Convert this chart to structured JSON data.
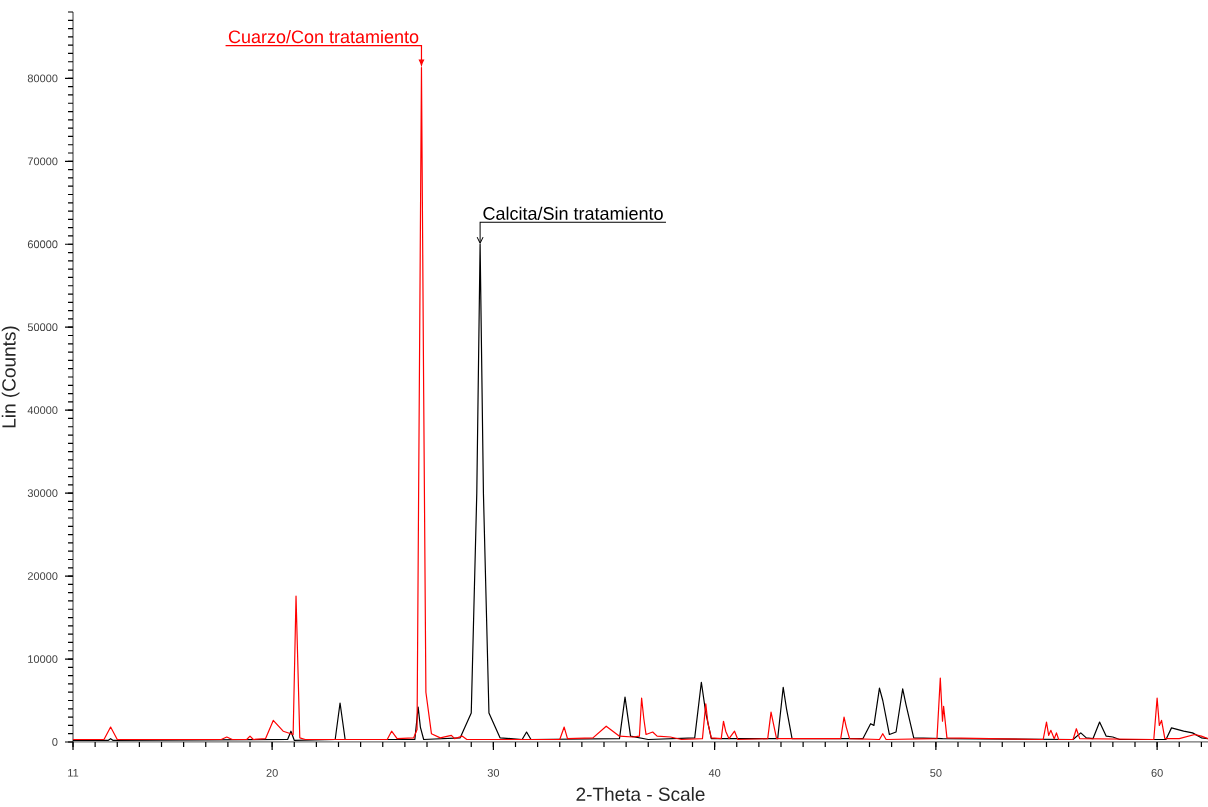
{
  "chart_data": {
    "type": "line",
    "xlabel": "2-Theta - Scale",
    "ylabel": "Lin (Counts)",
    "xlim": [
      11,
      62.3
    ],
    "ylim": [
      0,
      88000
    ],
    "xticks": [
      11,
      20,
      30,
      40,
      50,
      60
    ],
    "yticks": [
      0,
      10000,
      20000,
      30000,
      40000,
      50000,
      60000,
      70000,
      80000
    ],
    "series": [
      {
        "color": "#000000",
        "x": [
          11,
          12.6,
          12.7,
          12.8,
          20.7,
          20.85,
          21.0,
          22.85,
          23.07,
          23.3,
          26.45,
          26.6,
          26.7,
          26.85,
          28.5,
          29.0,
          29.25,
          29.4,
          29.55,
          29.8,
          30.3,
          31.3,
          31.5,
          31.7,
          35.7,
          35.95,
          36.2,
          37.0,
          39.1,
          39.4,
          39.6,
          39.85,
          42.85,
          43.1,
          43.25,
          43.5,
          46.7,
          47.05,
          47.2,
          47.45,
          47.6,
          47.9,
          48.2,
          48.5,
          48.65,
          49.0,
          50.3,
          56.2,
          56.55,
          56.8,
          57.1,
          57.4,
          57.7,
          58.0,
          58.3,
          60.4,
          60.65,
          61.2,
          61.6,
          62.0,
          62.3
        ],
        "values": [
          200,
          200,
          400,
          200,
          300,
          1300,
          200,
          300,
          4700,
          300,
          300,
          4200,
          1800,
          300,
          500,
          3500,
          30000,
          60000,
          30000,
          3500,
          500,
          300,
          1200,
          300,
          400,
          5400,
          700,
          300,
          500,
          7200,
          3500,
          400,
          400,
          6600,
          4000,
          400,
          400,
          2200,
          2000,
          6500,
          5000,
          900,
          1200,
          6400,
          4500,
          500,
          400,
          300,
          1100,
          500,
          400,
          2400,
          700,
          600,
          300,
          300,
          1700,
          1300,
          1100,
          500,
          400
        ]
      },
      {
        "color": "#ff0000",
        "x": [
          11,
          12.4,
          12.7,
          13.0,
          17.7,
          17.95,
          18.2,
          18.85,
          19.0,
          19.15,
          19.7,
          20.05,
          20.5,
          20.95,
          21.08,
          21.25,
          21.5,
          25.2,
          25.4,
          25.65,
          26.4,
          26.55,
          26.75,
          26.85,
          26.95,
          27.2,
          27.6,
          28.1,
          28.25,
          28.6,
          28.8,
          33.0,
          33.2,
          33.35,
          34.5,
          35.1,
          35.7,
          36.3,
          36.6,
          36.7,
          36.8,
          36.9,
          37.2,
          37.4,
          38.0,
          38.5,
          39.45,
          39.6,
          39.7,
          39.85,
          40.3,
          40.4,
          40.5,
          40.65,
          40.9,
          41.05,
          42.4,
          42.55,
          42.65,
          42.8,
          45.7,
          45.85,
          45.95,
          46.1,
          47.45,
          47.6,
          47.75,
          50.05,
          50.2,
          50.3,
          50.35,
          50.5,
          54.85,
          55.0,
          55.1,
          55.2,
          55.35,
          55.45,
          55.55,
          56.2,
          56.35,
          56.5,
          59.85,
          60.0,
          60.1,
          60.2,
          60.35,
          61.0,
          61.7,
          62.0,
          62.3
        ],
        "values": [
          300,
          300,
          1800,
          300,
          300,
          600,
          300,
          300,
          700,
          300,
          400,
          2600,
          1300,
          900,
          17600,
          500,
          300,
          300,
          1300,
          400,
          500,
          1500,
          81300,
          42000,
          6000,
          1000,
          500,
          800,
          400,
          700,
          300,
          300,
          1800,
          400,
          500,
          1900,
          700,
          600,
          700,
          5300,
          2800,
          900,
          1200,
          700,
          600,
          300,
          400,
          4600,
          2200,
          500,
          400,
          2500,
          1300,
          400,
          1300,
          300,
          400,
          3600,
          2300,
          400,
          400,
          3000,
          1800,
          400,
          300,
          1000,
          300,
          400,
          7700,
          2500,
          4300,
          500,
          300,
          2400,
          800,
          1400,
          400,
          1100,
          300,
          300,
          1600,
          400,
          300,
          5300,
          2000,
          2600,
          400,
          400,
          900,
          700,
          400
        ]
      }
    ],
    "annotations": [
      {
        "text": "Cuarzo/Con tratamiento",
        "x": 26.75,
        "y": 81300
      },
      {
        "text": "Calcita/Sin tratamiento",
        "x": 29.4,
        "y": 60000
      }
    ]
  }
}
